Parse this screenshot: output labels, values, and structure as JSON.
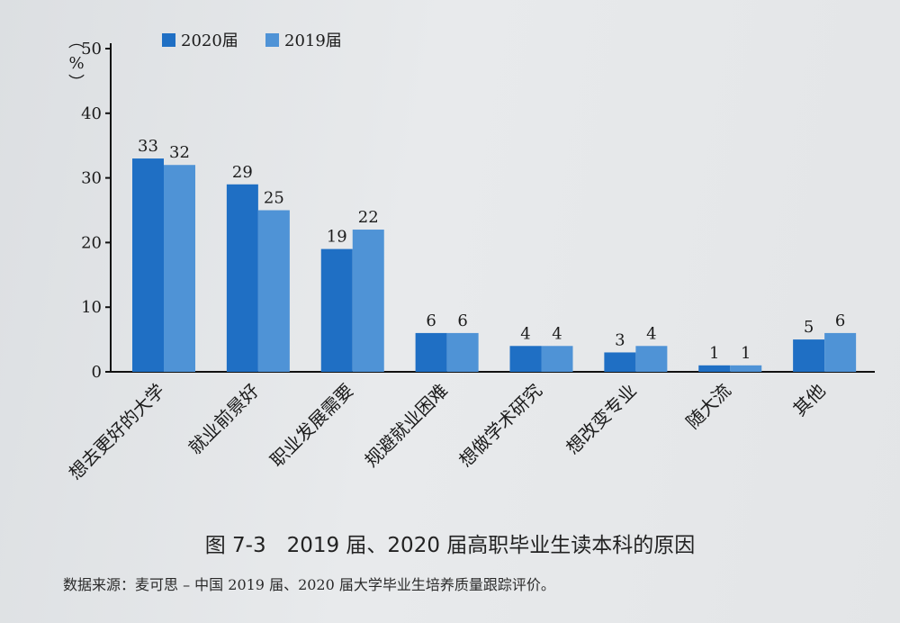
{
  "chart_data": {
    "type": "bar",
    "ylabel": "%",
    "ylim": [
      0,
      50
    ],
    "yticks": [
      0,
      10,
      20,
      30,
      40,
      50
    ],
    "legend_position": "top-left",
    "categories": [
      "想去更好的大学",
      "就业前景好",
      "职业发展需要",
      "规避就业困难",
      "想做学术研究",
      "想改变专业",
      "随大流",
      "其他"
    ],
    "series": [
      {
        "name": "2020届",
        "color": "#1f6fc4",
        "values": [
          33,
          29,
          19,
          6,
          4,
          3,
          1,
          5
        ]
      },
      {
        "name": "2019届",
        "color": "#4f93d6",
        "values": [
          32,
          25,
          22,
          6,
          4,
          4,
          1,
          6
        ]
      }
    ]
  },
  "caption": "图 7-3　2019 届、2020 届高职毕业生读本科的原因",
  "source": "数据来源：麦可思 – 中国 2019 届、2020 届大学毕业生培养质量跟踪评价。"
}
